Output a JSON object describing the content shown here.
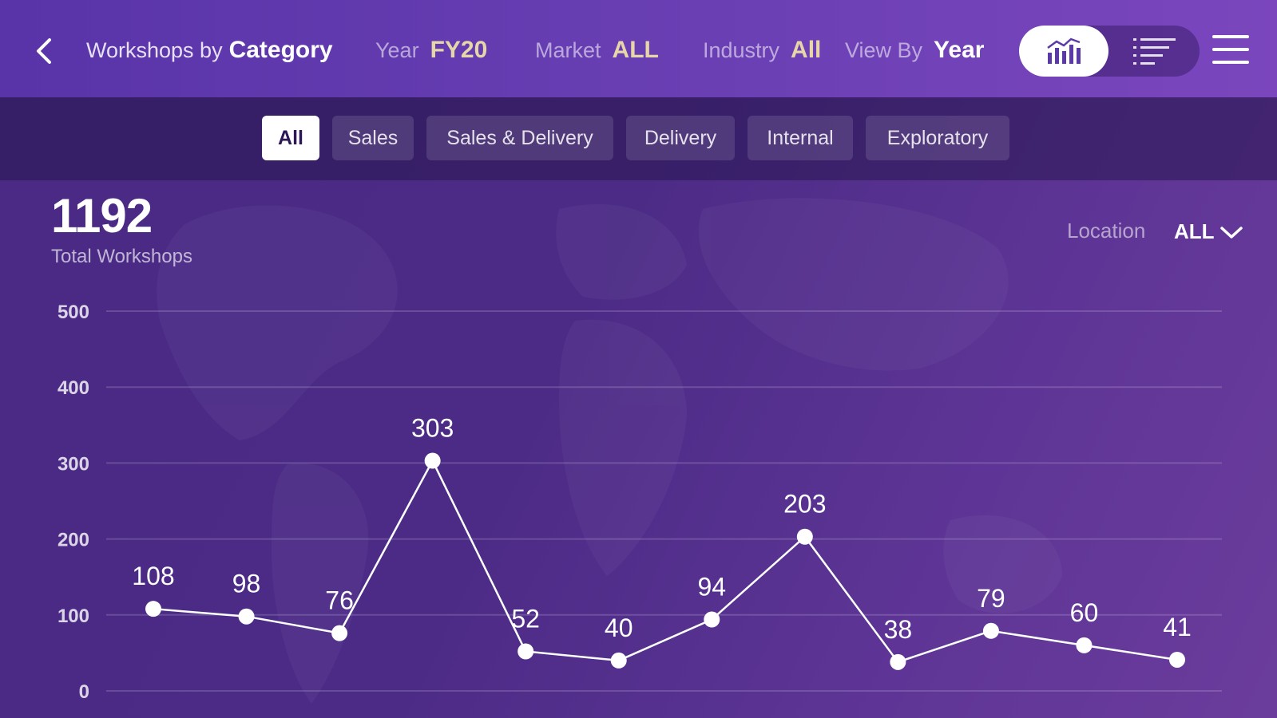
{
  "header": {
    "title_prefix": "Workshops by",
    "title_value": "Category",
    "filters": [
      {
        "label": "Year",
        "value": "FY20"
      },
      {
        "label": "Market",
        "value": "ALL"
      },
      {
        "label": "Industry",
        "value": "All"
      },
      {
        "label": "View By",
        "value": "Year"
      }
    ],
    "icons": {
      "back": "chevron-left-icon",
      "chart_view": "bar-line-chart-icon",
      "list_view": "list-icon",
      "menu": "hamburger-menu-icon"
    },
    "active_view": "chart"
  },
  "category_tabs": {
    "items": [
      "All",
      "Sales",
      "Sales & Delivery",
      "Delivery",
      "Internal",
      "Exploratory"
    ],
    "active_index": 0
  },
  "summary": {
    "total_value": "1192",
    "total_label": "Total Workshops"
  },
  "location": {
    "label": "Location",
    "value": "ALL"
  },
  "colors": {
    "header_bg": "#6a3fb4",
    "body_bg": "#4c2b86",
    "accent_gold": "#e6d6a8",
    "line": "#ffffff"
  },
  "chart_data": {
    "type": "line",
    "x": [
      1,
      2,
      3,
      4,
      5,
      6,
      7,
      8,
      9,
      10,
      11,
      12
    ],
    "series": [
      {
        "values": [
          108,
          98,
          76,
          303,
          52,
          40,
          94,
          203,
          38,
          79,
          60,
          41
        ]
      }
    ],
    "y_ticks": [
      "0",
      "100",
      "200",
      "300",
      "400",
      "500"
    ],
    "ylim": [
      0,
      500
    ],
    "grid": true,
    "data_labels": true
  }
}
